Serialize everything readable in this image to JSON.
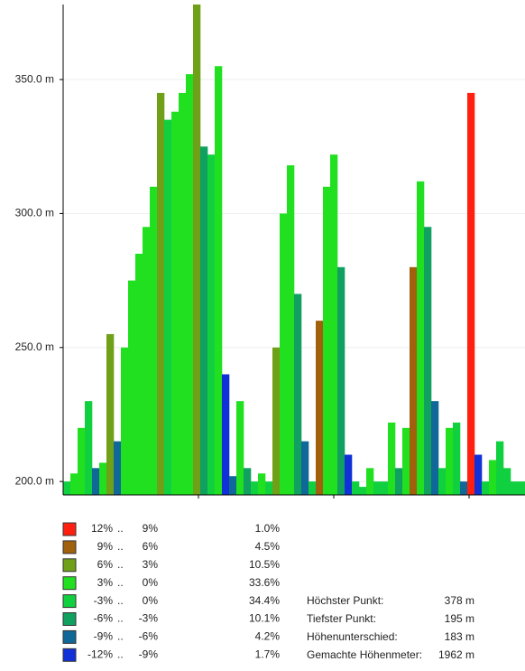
{
  "chart_data": {
    "type": "profile",
    "values": [
      200,
      203,
      220,
      230,
      205,
      207,
      255,
      215,
      250,
      275,
      285,
      295,
      310,
      345,
      335,
      338,
      345,
      352,
      378,
      325,
      322,
      355,
      240,
      202,
      230,
      205,
      200,
      203,
      200,
      250,
      300,
      318,
      270,
      215,
      200,
      260,
      310,
      322,
      280,
      210,
      200,
      198,
      205,
      200,
      200,
      222,
      205,
      220,
      280,
      312,
      295,
      230,
      205,
      220,
      222,
      200,
      345,
      210,
      200,
      208,
      215,
      205,
      200,
      200
    ],
    "point_class": [
      4,
      3,
      3,
      4,
      6,
      3,
      2,
      6,
      3,
      3,
      3,
      3,
      3,
      2,
      4,
      3,
      3,
      3,
      2,
      5,
      4,
      3,
      7,
      6,
      3,
      5,
      4,
      3,
      4,
      2,
      3,
      3,
      5,
      6,
      4,
      1,
      3,
      3,
      5,
      7,
      4,
      4,
      3,
      4,
      4,
      3,
      5,
      3,
      1,
      3,
      5,
      6,
      4,
      3,
      4,
      6,
      0,
      7,
      4,
      3,
      4,
      4,
      4,
      4
    ],
    "ylim": [
      195,
      378
    ],
    "yticks": [
      {
        "value": 200,
        "label": "200.0 m"
      },
      {
        "value": 250,
        "label": "250.0 m"
      },
      {
        "value": 300,
        "label": "300.0 m"
      },
      {
        "value": 350,
        "label": "350.0 m"
      }
    ],
    "grid": true,
    "separator": "..",
    "legend": [
      {
        "color": "#ff2010",
        "from": "12%",
        "to": "9%",
        "share": "1.0%"
      },
      {
        "color": "#a0600c",
        "from": "9%",
        "to": "6%",
        "share": "4.5%"
      },
      {
        "color": "#70a018",
        "from": "6%",
        "to": "3%",
        "share": "10.5%"
      },
      {
        "color": "#20e020",
        "from": "3%",
        "to": "0%",
        "share": "33.6%"
      },
      {
        "color": "#10d040",
        "from": "-3%",
        "to": "0%",
        "share": "34.4%"
      },
      {
        "color": "#10a060",
        "from": "-6%",
        "to": "-3%",
        "share": "10.1%"
      },
      {
        "color": "#106898",
        "from": "-9%",
        "to": "-6%",
        "share": "4.2%"
      },
      {
        "color": "#1030d8",
        "from": "-12%",
        "to": "-9%",
        "share": "1.7%"
      }
    ],
    "stats": [
      {
        "label": "Höchster Punkt:",
        "value": "378 m"
      },
      {
        "label": "Tiefster Punkt:",
        "value": "195 m"
      },
      {
        "label": "Höhenunterschied:",
        "value": "183 m"
      },
      {
        "label": "Gemachte Höhenmeter:",
        "value": "1962 m"
      }
    ]
  }
}
